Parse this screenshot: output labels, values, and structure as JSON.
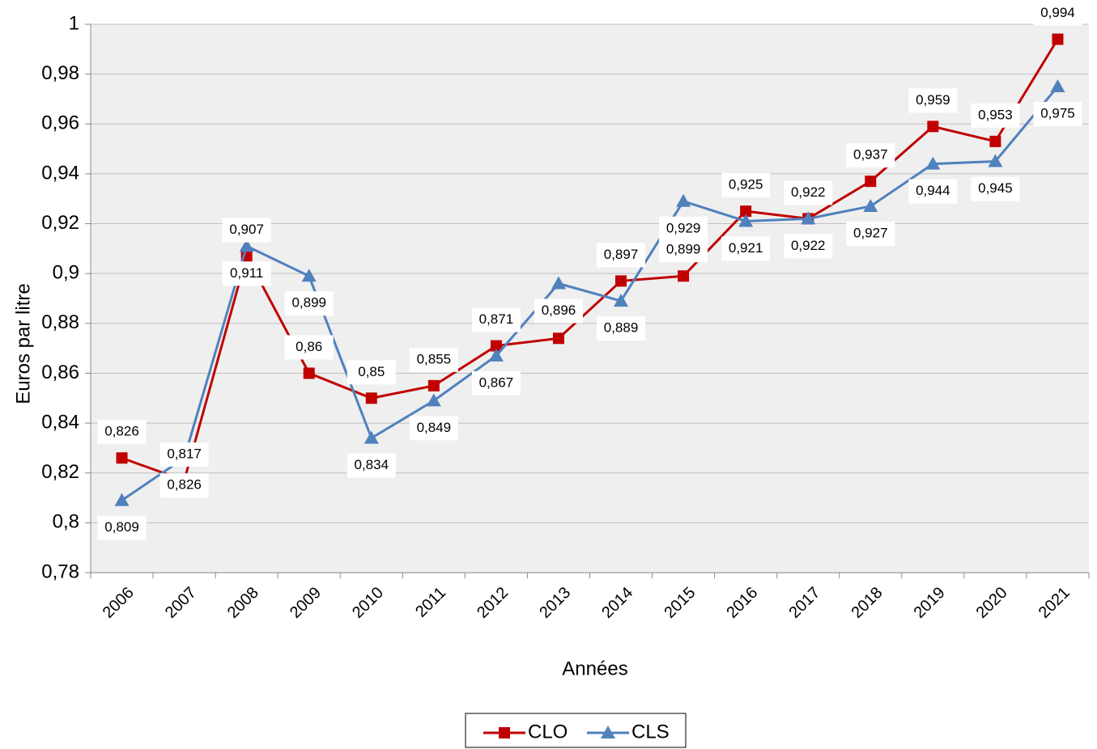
{
  "chart_data": {
    "type": "line",
    "x_label": "Années",
    "y_label": "Euros par litre",
    "categories": [
      "2006",
      "2007",
      "2008",
      "2009",
      "2010",
      "2011",
      "2012",
      "2013",
      "2014",
      "2015",
      "2016",
      "2017",
      "2018",
      "2019",
      "2020",
      "2021"
    ],
    "series": [
      {
        "name": "CLO",
        "color": "#c00000",
        "marker": "square",
        "values": [
          0.826,
          0.817,
          0.907,
          0.86,
          0.85,
          0.855,
          0.871,
          0.874,
          0.897,
          0.899,
          0.925,
          0.922,
          0.937,
          0.959,
          0.953,
          0.994
        ],
        "value_labels": [
          "0,826",
          "0,817",
          "0,907",
          "0,86",
          "0,85",
          "0,855",
          "0,871",
          null,
          "0,897",
          "0,899",
          "0,925",
          "0,922",
          "0,937",
          "0,959",
          "0,953",
          "0,994"
        ]
      },
      {
        "name": "CLS",
        "color": "#4f81bd",
        "marker": "triangle",
        "values": [
          0.809,
          0.826,
          0.911,
          0.899,
          0.834,
          0.849,
          0.867,
          0.896,
          0.889,
          0.929,
          0.921,
          0.922,
          0.927,
          0.944,
          0.945,
          0.975
        ],
        "value_labels": [
          "0,809",
          "0,826",
          "0,911",
          "0,899",
          "0,834",
          "0,849",
          "0,867",
          "0,896",
          "0,889",
          "0,929",
          "0,921",
          "0,922",
          "0,927",
          "0,944",
          "0,945",
          "0,975"
        ]
      }
    ],
    "ylim": [
      0.78,
      1
    ],
    "yticks": [
      {
        "value": 0.78,
        "label": "0,78"
      },
      {
        "value": 0.8,
        "label": "0,8"
      },
      {
        "value": 0.82,
        "label": "0,82"
      },
      {
        "value": 0.84,
        "label": "0,84"
      },
      {
        "value": 0.86,
        "label": "0,86"
      },
      {
        "value": 0.88,
        "label": "0,88"
      },
      {
        "value": 0.9,
        "label": "0,9"
      },
      {
        "value": 0.92,
        "label": "0,92"
      },
      {
        "value": 0.94,
        "label": "0,94"
      },
      {
        "value": 0.96,
        "label": "0,96"
      },
      {
        "value": 0.98,
        "label": "0,98"
      },
      1
    ],
    "grid": true,
    "legend": "bottom"
  }
}
